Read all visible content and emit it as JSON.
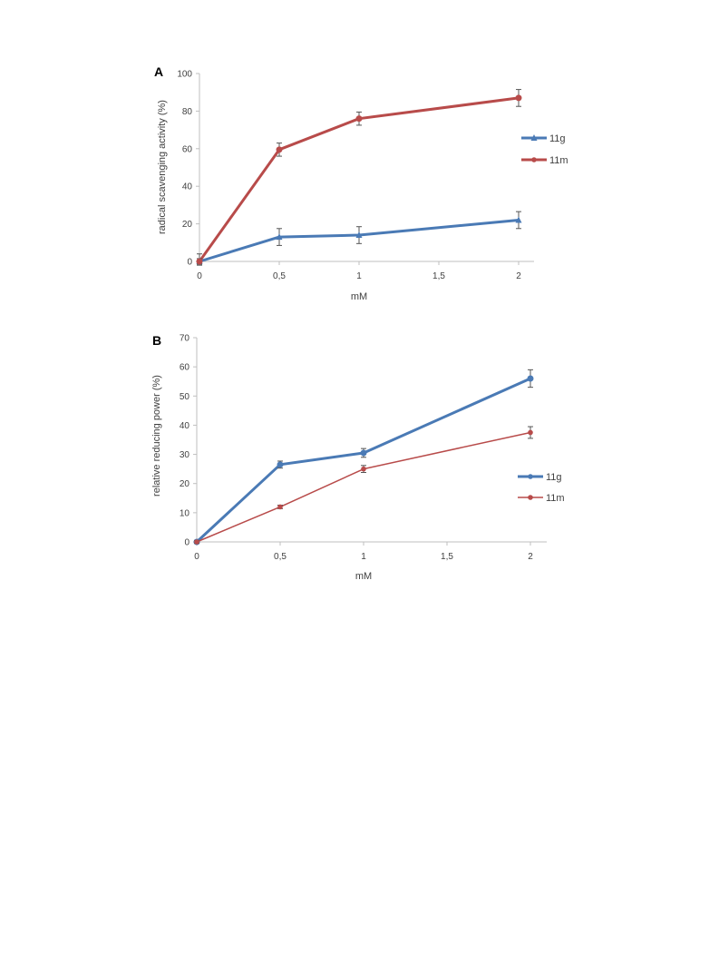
{
  "chart_data": [
    {
      "type": "line",
      "panel_label": "A",
      "xlabel": "mM",
      "ylabel": "radical scavenging activity (%)",
      "x": [
        0,
        0.5,
        1,
        1.5,
        2
      ],
      "x_tick_labels": [
        "0",
        "0,5",
        "1",
        "1,5",
        "2"
      ],
      "ylim": [
        0,
        100
      ],
      "y_ticks": [
        0,
        20,
        40,
        60,
        80,
        100
      ],
      "legend_position": "right",
      "series": [
        {
          "name": "11g",
          "color": "#4a7ab5",
          "marker": "triangle",
          "line_width": 3,
          "points": [
            {
              "x": 0,
              "y": 0,
              "err": 4
            },
            {
              "x": 0.5,
              "y": 13,
              "err": 4.5
            },
            {
              "x": 1,
              "y": 14,
              "err": 4.5
            },
            {
              "x": 2,
              "y": 22,
              "err": 4.5
            }
          ]
        },
        {
          "name": "11m",
          "color": "#b84b4a",
          "marker": "circle",
          "line_width": 3,
          "points": [
            {
              "x": 0,
              "y": 0,
              "err": 1.5
            },
            {
              "x": 0.5,
              "y": 59.5,
              "err": 3.5
            },
            {
              "x": 1,
              "y": 76,
              "err": 3.5
            },
            {
              "x": 2,
              "y": 87,
              "err": 4.5
            }
          ]
        }
      ]
    },
    {
      "type": "line",
      "panel_label": "B",
      "xlabel": "mM",
      "ylabel": "relative reducing power (%)",
      "x": [
        0,
        0.5,
        1,
        1.5,
        2
      ],
      "x_tick_labels": [
        "0",
        "0,5",
        "1",
        "1,5",
        "2"
      ],
      "ylim": [
        0,
        70
      ],
      "y_ticks": [
        0,
        10,
        20,
        30,
        40,
        50,
        60,
        70
      ],
      "legend_position": "right",
      "series": [
        {
          "name": "11g",
          "color": "#4a7ab5",
          "marker": "circle",
          "line_width": 3,
          "points": [
            {
              "x": 0,
              "y": 0,
              "err": 0.5
            },
            {
              "x": 0.5,
              "y": 26.5,
              "err": 1.2
            },
            {
              "x": 1,
              "y": 30.5,
              "err": 1.5
            },
            {
              "x": 2,
              "y": 56,
              "err": 3
            }
          ]
        },
        {
          "name": "11m",
          "color": "#b84b4a",
          "marker": "circle",
          "line_width": 1.5,
          "points": [
            {
              "x": 0,
              "y": 0,
              "err": 0.5
            },
            {
              "x": 0.5,
              "y": 12,
              "err": 0.6
            },
            {
              "x": 1,
              "y": 25,
              "err": 1.2
            },
            {
              "x": 2,
              "y": 37.5,
              "err": 2
            }
          ]
        }
      ]
    }
  ]
}
